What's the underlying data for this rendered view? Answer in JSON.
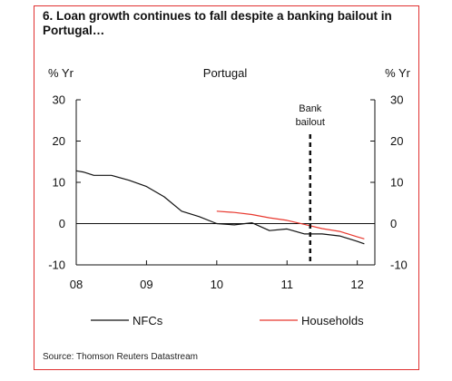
{
  "chart_data": {
    "type": "line",
    "title": "6. Loan growth continues to fall despite a banking bailout in Portugal…",
    "subtitle": "Portugal",
    "ylabel_left": "% Yr",
    "ylabel_right": "% Yr",
    "ylim": [
      -10,
      30
    ],
    "yticks": [
      30,
      20,
      10,
      0,
      -10
    ],
    "xlim": [
      2008.0,
      2012.25
    ],
    "xticks": [
      {
        "value": 2008,
        "label": "08"
      },
      {
        "value": 2009,
        "label": "09"
      },
      {
        "value": 2010,
        "label": "10"
      },
      {
        "value": 2011,
        "label": "11"
      },
      {
        "value": 2012,
        "label": "12"
      }
    ],
    "grid": false,
    "zero_line": true,
    "legend_position": "bottom",
    "series": [
      {
        "name": "NFCs",
        "color": "#111111",
        "x": [
          2008.0,
          2008.1,
          2008.25,
          2008.5,
          2008.75,
          2009.0,
          2009.25,
          2009.5,
          2009.75,
          2010.0,
          2010.25,
          2010.5,
          2010.75,
          2011.0,
          2011.25,
          2011.5,
          2011.75,
          2012.0,
          2012.1
        ],
        "values": [
          12.8,
          12.5,
          11.7,
          11.7,
          10.5,
          9.0,
          6.5,
          3.0,
          1.7,
          0.0,
          -0.3,
          0.2,
          -1.7,
          -1.3,
          -2.5,
          -2.5,
          -3.0,
          -4.3,
          -4.9
        ]
      },
      {
        "name": "Households",
        "color": "#e8382e",
        "x": [
          2010.0,
          2010.25,
          2010.5,
          2010.75,
          2011.0,
          2011.25,
          2011.5,
          2011.75,
          2012.0,
          2012.1
        ],
        "values": [
          3.0,
          2.7,
          2.2,
          1.4,
          0.8,
          -0.2,
          -1.2,
          -1.9,
          -3.2,
          -3.7
        ]
      }
    ],
    "annotation": {
      "text_lines": [
        "Bank",
        "bailout"
      ],
      "x": 2011.33,
      "style": "dashed-vertical"
    },
    "source": "Source: Thomson Reuters Datastream"
  }
}
